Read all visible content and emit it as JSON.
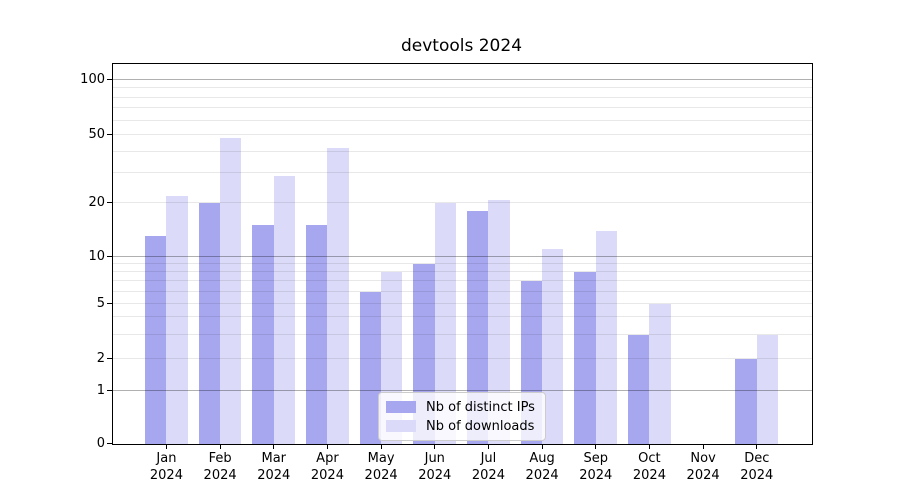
{
  "title": "devtools 2024",
  "colors": {
    "distinct_ips_bar": "#a7a7f0",
    "downloads_bar": "#dbdbf9",
    "grid_major": "#b0b0b0",
    "grid_minor": "#eaeaea",
    "axis": "#000000",
    "legend_border": "#cccccc",
    "background": "#ffffff"
  },
  "legend": {
    "position": "lower center",
    "items": [
      {
        "label": "Nb of distinct IPs"
      },
      {
        "label": "Nb of downloads"
      }
    ]
  },
  "chart_data": {
    "type": "bar",
    "title": "devtools 2024",
    "categories": [
      "Jan",
      "Feb",
      "Mar",
      "Apr",
      "May",
      "Jun",
      "Jul",
      "Aug",
      "Sep",
      "Oct",
      "Nov",
      "Dec"
    ],
    "category_year": "2024",
    "series": [
      {
        "name": "Nb of distinct IPs",
        "color": "#a7a7f0",
        "values": [
          13,
          20,
          15,
          15,
          6,
          9,
          18,
          7,
          8,
          3,
          0,
          2
        ]
      },
      {
        "name": "Nb of downloads",
        "color": "#dbdbf9",
        "values": [
          22,
          48,
          29,
          42,
          8,
          20,
          21,
          11,
          14,
          5,
          0,
          3
        ]
      }
    ],
    "xlabel": "",
    "ylabel": "",
    "yscale": "symlog",
    "y_tick_values": [
      0,
      1,
      2,
      5,
      10,
      20,
      50,
      100
    ],
    "y_axis_anchor_fractions": [
      [
        0,
        0
      ],
      [
        1,
        0.1395
      ],
      [
        2,
        0.2237
      ],
      [
        5,
        0.3684
      ],
      [
        10,
        0.4932
      ],
      [
        20,
        0.6334
      ],
      [
        50,
        0.8124
      ],
      [
        100,
        0.9579
      ]
    ],
    "grid": "both",
    "grid_major_values": [
      1,
      10,
      100
    ],
    "grid_minor_values": [
      2,
      3,
      4,
      5,
      6,
      7,
      8,
      9,
      20,
      30,
      40,
      50,
      60,
      70,
      80,
      90
    ],
    "legend_position": "lower center"
  }
}
